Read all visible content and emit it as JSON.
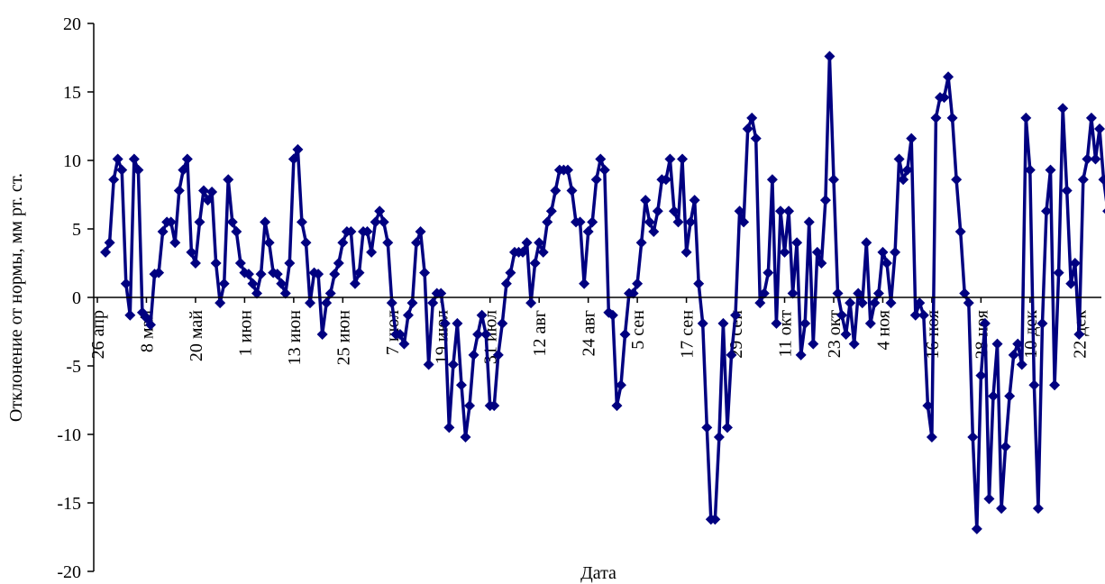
{
  "chart_data": {
    "type": "line",
    "title": "",
    "xlabel": "Дата",
    "ylabel": "Отклонение от нормы, мм рт. ст.",
    "ylim": [
      -20,
      20
    ],
    "yticks": [
      -20,
      -15,
      -10,
      -5,
      0,
      5,
      10,
      15,
      20
    ],
    "ytick_labels": [
      "-20",
      "-15",
      "-10",
      "-5",
      "0",
      "5",
      "10",
      "15",
      "20"
    ],
    "x_range_days": [
      0,
      245
    ],
    "xticks": [
      {
        "day": 0,
        "label": "26 апр"
      },
      {
        "day": 12,
        "label": "8 май"
      },
      {
        "day": 24,
        "label": "20 май"
      },
      {
        "day": 36,
        "label": "1 июн"
      },
      {
        "day": 48,
        "label": "13 июн"
      },
      {
        "day": 60,
        "label": "25 июн"
      },
      {
        "day": 72,
        "label": "7 июл"
      },
      {
        "day": 84,
        "label": "19 июл"
      },
      {
        "day": 96,
        "label": "31 июл"
      },
      {
        "day": 108,
        "label": "12 авг"
      },
      {
        "day": 120,
        "label": "24 авг"
      },
      {
        "day": 132,
        "label": "5 сен"
      },
      {
        "day": 144,
        "label": "17 сен"
      },
      {
        "day": 156,
        "label": "29 сен"
      },
      {
        "day": 168,
        "label": "11 окт"
      },
      {
        "day": 180,
        "label": "23 окт"
      },
      {
        "day": 192,
        "label": "4 ноя"
      },
      {
        "day": 204,
        "label": "16 ноя"
      },
      {
        "day": 216,
        "label": "28 ноя"
      },
      {
        "day": 228,
        "label": "10 дек"
      },
      {
        "day": 240,
        "label": "22 дек"
      }
    ],
    "grid": false,
    "series": [
      {
        "color": "#000080",
        "marker": "diamond",
        "points": [
          [
            2,
            3.3
          ],
          [
            3,
            4
          ],
          [
            4,
            8.6
          ],
          [
            5,
            10.1
          ],
          [
            6,
            9.3
          ],
          [
            7,
            1
          ],
          [
            8,
            -1.3
          ],
          [
            9,
            10.1
          ],
          [
            10,
            9.3
          ],
          [
            11,
            -1.1
          ],
          [
            12,
            -1.5
          ],
          [
            13,
            -2
          ],
          [
            14,
            1.7
          ],
          [
            15,
            1.8
          ],
          [
            16,
            4.8
          ],
          [
            17,
            5.5
          ],
          [
            18,
            5.5
          ],
          [
            19,
            4
          ],
          [
            20,
            7.8
          ],
          [
            21,
            9.3
          ],
          [
            22,
            10.1
          ],
          [
            23,
            3.3
          ],
          [
            24,
            2.5
          ],
          [
            25,
            5.5
          ],
          [
            26,
            7.8
          ],
          [
            27,
            7.1
          ],
          [
            28,
            7.7
          ],
          [
            29,
            2.5
          ],
          [
            30,
            -0.4
          ],
          [
            31,
            1
          ],
          [
            32,
            8.6
          ],
          [
            33,
            5.5
          ],
          [
            34,
            4.8
          ],
          [
            35,
            2.5
          ],
          [
            36,
            1.8
          ],
          [
            37,
            1.7
          ],
          [
            38,
            1
          ],
          [
            39,
            0.3
          ],
          [
            40,
            1.7
          ],
          [
            41,
            5.5
          ],
          [
            42,
            4
          ],
          [
            43,
            1.8
          ],
          [
            44,
            1.7
          ],
          [
            45,
            1
          ],
          [
            46,
            0.3
          ],
          [
            47,
            2.5
          ],
          [
            48,
            10.1
          ],
          [
            49,
            10.8
          ],
          [
            50,
            5.5
          ],
          [
            51,
            4
          ],
          [
            52,
            -0.4
          ],
          [
            53,
            1.8
          ],
          [
            54,
            1.7
          ],
          [
            55,
            -2.7
          ],
          [
            56,
            -0.4
          ],
          [
            57,
            0.3
          ],
          [
            58,
            1.7
          ],
          [
            59,
            2.5
          ],
          [
            60,
            4
          ],
          [
            61,
            4.8
          ],
          [
            62,
            4.8
          ],
          [
            63,
            1
          ],
          [
            64,
            1.8
          ],
          [
            65,
            4.8
          ],
          [
            66,
            4.8
          ],
          [
            67,
            3.3
          ],
          [
            68,
            5.5
          ],
          [
            69,
            6.3
          ],
          [
            70,
            5.5
          ],
          [
            71,
            4
          ],
          [
            72,
            -0.4
          ],
          [
            73,
            -2.7
          ],
          [
            74,
            -2.7
          ],
          [
            75,
            -3.4
          ],
          [
            76,
            -1.3
          ],
          [
            77,
            -0.4
          ],
          [
            78,
            4
          ],
          [
            79,
            4.8
          ],
          [
            80,
            1.8
          ],
          [
            81,
            -4.9
          ],
          [
            82,
            -0.4
          ],
          [
            83,
            0.3
          ],
          [
            84,
            0.3
          ],
          [
            85,
            -1.9
          ],
          [
            86,
            -9.5
          ],
          [
            87,
            -4.9
          ],
          [
            88,
            -1.9
          ],
          [
            89,
            -6.4
          ],
          [
            90,
            -10.2
          ],
          [
            91,
            -7.9
          ],
          [
            92,
            -4.2
          ],
          [
            93,
            -2.7
          ],
          [
            94,
            -1.3
          ],
          [
            95,
            -2.7
          ],
          [
            96,
            -7.9
          ],
          [
            97,
            -7.9
          ],
          [
            98,
            -4.2
          ],
          [
            99,
            -1.9
          ],
          [
            100,
            1
          ],
          [
            101,
            1.8
          ],
          [
            102,
            3.3
          ],
          [
            103,
            3.3
          ],
          [
            104,
            3.3
          ],
          [
            105,
            4
          ],
          [
            106,
            -0.4
          ],
          [
            107,
            2.5
          ],
          [
            108,
            4
          ],
          [
            109,
            3.3
          ],
          [
            110,
            5.5
          ],
          [
            111,
            6.3
          ],
          [
            112,
            7.8
          ],
          [
            113,
            9.3
          ],
          [
            114,
            9.3
          ],
          [
            115,
            9.3
          ],
          [
            116,
            7.8
          ],
          [
            117,
            5.5
          ],
          [
            118,
            5.5
          ],
          [
            119,
            1
          ],
          [
            120,
            4.8
          ],
          [
            121,
            5.5
          ],
          [
            122,
            8.6
          ],
          [
            123,
            10.1
          ],
          [
            124,
            9.3
          ],
          [
            125,
            -1.1
          ],
          [
            126,
            -1.3
          ],
          [
            127,
            -7.9
          ],
          [
            128,
            -6.4
          ],
          [
            129,
            -2.7
          ],
          [
            130,
            0.3
          ],
          [
            131,
            0.3
          ],
          [
            132,
            1
          ],
          [
            133,
            4
          ],
          [
            134,
            7.1
          ],
          [
            135,
            5.5
          ],
          [
            136,
            4.8
          ],
          [
            137,
            6.3
          ],
          [
            138,
            8.6
          ],
          [
            139,
            8.6
          ],
          [
            140,
            10.1
          ],
          [
            141,
            6.3
          ],
          [
            142,
            5.5
          ],
          [
            143,
            10.1
          ],
          [
            144,
            3.3
          ],
          [
            145,
            5.5
          ],
          [
            146,
            7.1
          ],
          [
            147,
            1
          ],
          [
            148,
            -1.9
          ],
          [
            149,
            -9.5
          ],
          [
            150,
            -16.2
          ],
          [
            151,
            -16.2
          ],
          [
            152,
            -10.2
          ],
          [
            153,
            -1.9
          ],
          [
            154,
            -9.5
          ],
          [
            155,
            -4.2
          ],
          [
            156,
            -1.3
          ],
          [
            157,
            6.3
          ],
          [
            158,
            5.5
          ],
          [
            159,
            12.3
          ],
          [
            160,
            13.1
          ],
          [
            161,
            11.6
          ],
          [
            162,
            -0.4
          ],
          [
            163,
            0.3
          ],
          [
            164,
            1.8
          ],
          [
            165,
            8.6
          ],
          [
            166,
            -1.9
          ],
          [
            167,
            6.3
          ],
          [
            168,
            3.3
          ],
          [
            169,
            6.3
          ],
          [
            170,
            0.3
          ],
          [
            171,
            4
          ],
          [
            172,
            -4.2
          ],
          [
            173,
            -1.9
          ],
          [
            174,
            5.5
          ],
          [
            175,
            -3.4
          ],
          [
            176,
            3.3
          ],
          [
            177,
            2.5
          ],
          [
            178,
            7.1
          ],
          [
            179,
            17.6
          ],
          [
            180,
            8.6
          ],
          [
            181,
            0.3
          ],
          [
            182,
            -1.3
          ],
          [
            183,
            -2.7
          ],
          [
            184,
            -0.4
          ],
          [
            185,
            -3.4
          ],
          [
            186,
            0.3
          ],
          [
            187,
            -0.4
          ],
          [
            188,
            4
          ],
          [
            189,
            -1.9
          ],
          [
            190,
            -0.4
          ],
          [
            191,
            0.3
          ],
          [
            192,
            3.3
          ],
          [
            193,
            2.5
          ],
          [
            194,
            -0.4
          ],
          [
            195,
            3.3
          ],
          [
            196,
            10.1
          ],
          [
            197,
            8.6
          ],
          [
            198,
            9.3
          ],
          [
            199,
            11.6
          ],
          [
            200,
            -1.3
          ],
          [
            201,
            -0.4
          ],
          [
            202,
            -1.3
          ],
          [
            203,
            -7.9
          ],
          [
            204,
            -10.2
          ],
          [
            205,
            13.1
          ],
          [
            206,
            14.6
          ],
          [
            207,
            14.6
          ],
          [
            208,
            16.1
          ],
          [
            209,
            13.1
          ],
          [
            210,
            8.6
          ],
          [
            211,
            4.8
          ],
          [
            212,
            0.3
          ],
          [
            213,
            -0.4
          ],
          [
            214,
            -10.2
          ],
          [
            215,
            -16.9
          ],
          [
            216,
            -5.7
          ],
          [
            217,
            -1.9
          ],
          [
            218,
            -14.7
          ],
          [
            219,
            -7.2
          ],
          [
            220,
            -3.4
          ],
          [
            221,
            -15.4
          ],
          [
            222,
            -10.9
          ],
          [
            223,
            -7.2
          ],
          [
            224,
            -4.2
          ],
          [
            225,
            -3.4
          ],
          [
            226,
            -4.9
          ],
          [
            227,
            13.1
          ],
          [
            228,
            9.3
          ],
          [
            229,
            -6.4
          ],
          [
            230,
            -15.4
          ],
          [
            231,
            -1.9
          ],
          [
            232,
            6.3
          ],
          [
            233,
            9.3
          ],
          [
            234,
            -6.4
          ],
          [
            235,
            1.8
          ],
          [
            236,
            13.8
          ],
          [
            237,
            7.8
          ],
          [
            238,
            1
          ],
          [
            239,
            2.5
          ],
          [
            240,
            -2.7
          ],
          [
            241,
            8.6
          ],
          [
            242,
            10.1
          ],
          [
            243,
            13.1
          ],
          [
            244,
            10.1
          ],
          [
            245,
            12.3
          ],
          [
            246,
            8.6
          ],
          [
            247,
            6.3
          ]
        ]
      }
    ]
  }
}
